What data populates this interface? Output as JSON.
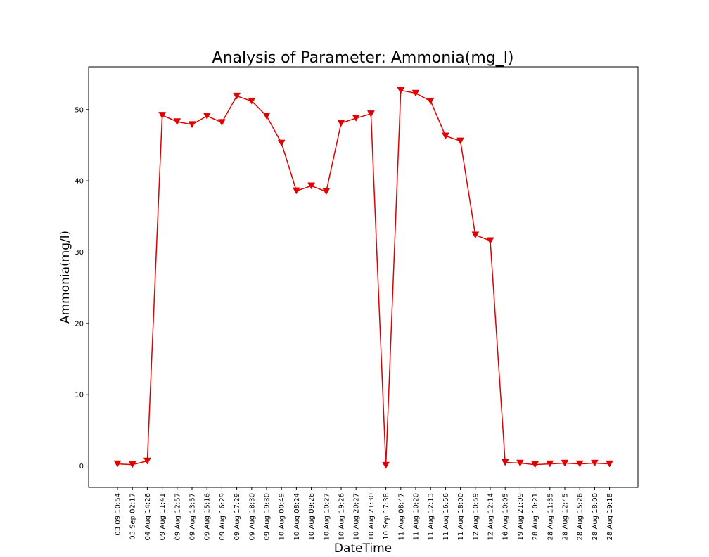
{
  "chart_data": {
    "type": "line",
    "title": "Analysis of Parameter: Ammonia(mg_l)",
    "xlabel": "DateTime",
    "ylabel": "Ammonia(mg/l)",
    "ylim": [
      -3,
      56
    ],
    "yticks": [
      0,
      10,
      20,
      30,
      40,
      50
    ],
    "grid": false,
    "line_color": "#e00000",
    "marker": "triangle-down",
    "categories": [
      "03 09 10:54",
      "03 Sep 02:17",
      "04 Aug 14:26",
      "09 Aug 11:41",
      "09 Aug 12:57",
      "09 Aug 13:57",
      "09 Aug 15:16",
      "09 Aug 16:29",
      "09 Aug 17:29",
      "09 Aug 18:30",
      "09 Aug 19:30",
      "10 Aug 00:49",
      "10 Aug 08:24",
      "10 Aug 09:26",
      "10 Aug 10:27",
      "10 Aug 19:26",
      "10 Aug 20:27",
      "10 Aug 21:30",
      "10 Sep 17:38",
      "11 Aug 08:47",
      "11 Aug 10:20",
      "11 Aug 12:13",
      "11 Aug 16:56",
      "11 Aug 18:00",
      "12 Aug 10:59",
      "12 Aug 12:14",
      "16 Aug 10:05",
      "19 Aug 21:09",
      "28 Aug 10:21",
      "28 Aug 11:35",
      "28 Aug 12:45",
      "28 Aug 15:26",
      "28 Aug 18:00",
      "28 Aug 19:18"
    ],
    "series": [
      {
        "values": [
          0.3,
          0.2,
          0.7,
          49.2,
          48.3,
          47.9,
          49.1,
          48.2,
          51.9,
          51.2,
          49.1,
          45.3,
          38.6,
          39.3,
          38.5,
          48.1,
          48.8,
          49.4,
          0.1,
          52.7,
          52.3,
          51.2,
          46.3,
          45.6,
          32.4,
          31.6,
          0.5,
          0.4,
          0.2,
          0.3,
          0.4,
          0.3,
          0.4,
          0.3
        ]
      }
    ]
  }
}
